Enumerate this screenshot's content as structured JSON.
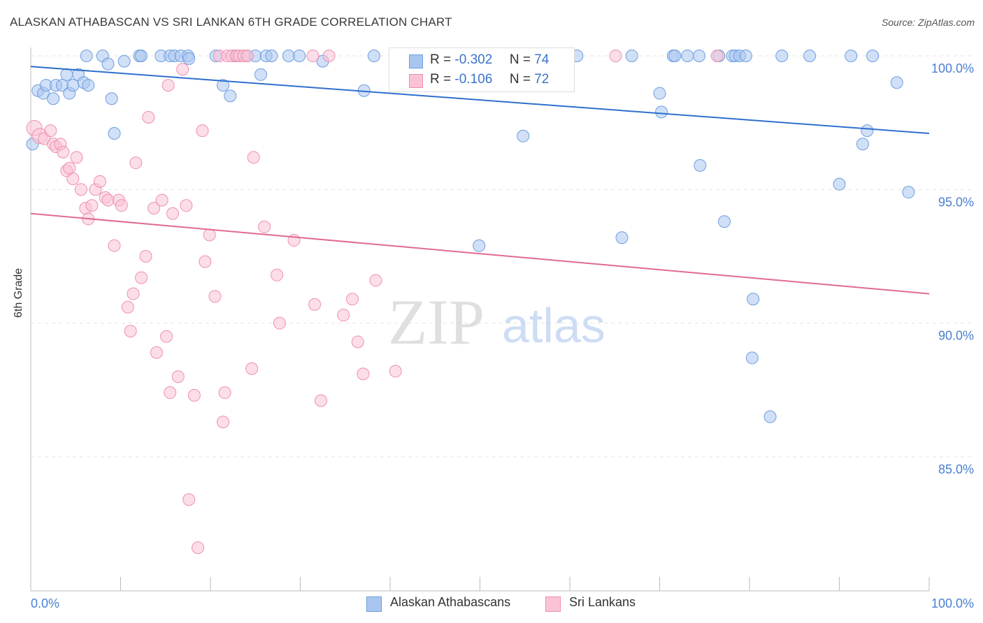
{
  "title": "ALASKAN ATHABASCAN VS SRI LANKAN 6TH GRADE CORRELATION CHART",
  "source": "Source: ZipAtlas.com",
  "watermark": {
    "zip": "ZIP",
    "atlas": "atlas"
  },
  "legend_top": {
    "r_label": "R =",
    "n_label": "N =",
    "rows": [
      {
        "r": "-0.302",
        "n": "74",
        "color": "#a9c6f0",
        "border": "#6f9de0"
      },
      {
        "r": "-0.106",
        "n": "72",
        "color": "#f9c3d5",
        "border": "#ef8fb0"
      }
    ]
  },
  "legend_bottom": [
    {
      "label": "Alaskan Athabascans",
      "color": "#a9c6f0",
      "border": "#6f9de0"
    },
    {
      "label": "Sri Lankans",
      "color": "#f9c3d5",
      "border": "#ef8fb0"
    }
  ],
  "chart_data": {
    "type": "scatter",
    "title": "ALASKAN ATHABASCAN VS SRI LANKAN 6TH GRADE CORRELATION CHART",
    "xlabel": "",
    "ylabel": "6th Grade",
    "xlim": [
      0,
      100
    ],
    "ylim": [
      80.5,
      100.5
    ],
    "x_tick_labels": [
      "0.0%",
      "100.0%"
    ],
    "y_ticks": [
      85,
      90,
      95,
      100
    ],
    "y_tick_labels": [
      "85.0%",
      "90.0%",
      "95.0%",
      "100.0%"
    ],
    "grid": true,
    "series": [
      {
        "name": "Alaskan Athabascans",
        "color": "#6f9de0",
        "fill": "#a9c6f0",
        "trend_color": "#2f6fcc",
        "trend": [
          [
            0,
            99.6
          ],
          [
            100,
            97.1
          ]
        ],
        "points": [
          [
            0.2,
            96.7
          ],
          [
            0.8,
            98.7
          ],
          [
            1.4,
            98.6
          ],
          [
            1.7,
            98.9
          ],
          [
            2.5,
            98.4
          ],
          [
            2.8,
            98.9
          ],
          [
            3.5,
            98.9
          ],
          [
            4.0,
            99.3
          ],
          [
            4.3,
            98.6
          ],
          [
            4.7,
            98.9
          ],
          [
            5.3,
            99.3
          ],
          [
            5.9,
            99.0
          ],
          [
            6.4,
            98.9
          ],
          [
            6.2,
            100
          ],
          [
            8.0,
            100
          ],
          [
            8.6,
            99.7
          ],
          [
            9.0,
            98.4
          ],
          [
            9.3,
            97.1
          ],
          [
            10.4,
            99.8
          ],
          [
            12.1,
            100
          ],
          [
            12.3,
            100
          ],
          [
            14.5,
            100
          ],
          [
            15.5,
            100
          ],
          [
            16.0,
            100
          ],
          [
            16.7,
            100
          ],
          [
            17.5,
            100
          ],
          [
            17.6,
            99.9
          ],
          [
            20.6,
            100
          ],
          [
            21.4,
            98.9
          ],
          [
            22.2,
            98.5
          ],
          [
            22.8,
            100
          ],
          [
            24.1,
            100
          ],
          [
            25.0,
            100
          ],
          [
            25.6,
            99.3
          ],
          [
            26.2,
            100
          ],
          [
            26.8,
            100
          ],
          [
            28.7,
            100
          ],
          [
            29.9,
            100
          ],
          [
            32.5,
            99.8
          ],
          [
            37.1,
            98.7
          ],
          [
            38.2,
            100
          ],
          [
            41.0,
            100
          ],
          [
            41.3,
            100
          ],
          [
            49.9,
            92.9
          ],
          [
            53.8,
            100
          ],
          [
            54.8,
            97.0
          ],
          [
            57.3,
            100
          ],
          [
            58.6,
            100
          ],
          [
            59.2,
            100
          ],
          [
            60.8,
            100
          ],
          [
            65.8,
            93.2
          ],
          [
            66.9,
            100
          ],
          [
            70.0,
            98.6
          ],
          [
            70.2,
            97.9
          ],
          [
            71.5,
            100
          ],
          [
            71.7,
            100
          ],
          [
            73.1,
            100
          ],
          [
            74.4,
            100
          ],
          [
            74.5,
            95.9
          ],
          [
            76.6,
            100
          ],
          [
            77.2,
            93.8
          ],
          [
            78.1,
            100
          ],
          [
            78.4,
            100
          ],
          [
            78.9,
            100
          ],
          [
            79.6,
            100
          ],
          [
            80.3,
            88.7
          ],
          [
            80.4,
            90.9
          ],
          [
            82.3,
            86.5
          ],
          [
            83.6,
            100
          ],
          [
            86.7,
            100
          ],
          [
            90.0,
            95.2
          ],
          [
            91.3,
            100
          ],
          [
            92.6,
            96.7
          ],
          [
            93.1,
            97.2
          ],
          [
            93.7,
            100
          ],
          [
            96.4,
            99.0
          ],
          [
            97.7,
            94.9
          ]
        ]
      },
      {
        "name": "Sri Lankans",
        "color": "#ef8fb0",
        "fill": "#f9c3d5",
        "trend_color": "#e06a93",
        "trend": [
          [
            0,
            94.1
          ],
          [
            100,
            91.1
          ]
        ],
        "points": [
          [
            0.4,
            97.3
          ],
          [
            1.0,
            97.0
          ],
          [
            1.5,
            96.9
          ],
          [
            2.2,
            97.2
          ],
          [
            2.5,
            96.7
          ],
          [
            2.8,
            96.6
          ],
          [
            3.3,
            96.7
          ],
          [
            3.6,
            96.4
          ],
          [
            4.0,
            95.7
          ],
          [
            4.3,
            95.8
          ],
          [
            4.7,
            95.4
          ],
          [
            5.1,
            96.2
          ],
          [
            5.6,
            95.0
          ],
          [
            6.1,
            94.3
          ],
          [
            6.4,
            93.9
          ],
          [
            6.8,
            94.4
          ],
          [
            7.2,
            95.0
          ],
          [
            7.7,
            95.3
          ],
          [
            8.3,
            94.7
          ],
          [
            8.6,
            94.6
          ],
          [
            9.3,
            92.9
          ],
          [
            9.8,
            94.6
          ],
          [
            10.1,
            94.4
          ],
          [
            10.8,
            90.6
          ],
          [
            11.1,
            89.7
          ],
          [
            11.4,
            91.1
          ],
          [
            11.7,
            96.0
          ],
          [
            12.3,
            91.7
          ],
          [
            12.8,
            92.5
          ],
          [
            13.1,
            97.7
          ],
          [
            13.7,
            94.3
          ],
          [
            14.0,
            88.9
          ],
          [
            14.6,
            94.6
          ],
          [
            15.1,
            89.5
          ],
          [
            15.3,
            98.9
          ],
          [
            15.5,
            87.4
          ],
          [
            15.8,
            94.1
          ],
          [
            16.4,
            88.0
          ],
          [
            16.9,
            99.5
          ],
          [
            17.3,
            94.4
          ],
          [
            17.6,
            83.4
          ],
          [
            18.2,
            87.3
          ],
          [
            18.6,
            81.6
          ],
          [
            19.1,
            97.2
          ],
          [
            19.4,
            92.3
          ],
          [
            19.9,
            93.3
          ],
          [
            20.5,
            91.0
          ],
          [
            21.0,
            100
          ],
          [
            21.4,
            86.3
          ],
          [
            21.6,
            87.4
          ],
          [
            21.9,
            100
          ],
          [
            22.4,
            100
          ],
          [
            22.9,
            100
          ],
          [
            23.2,
            100
          ],
          [
            23.7,
            100
          ],
          [
            24.1,
            100
          ],
          [
            24.6,
            88.3
          ],
          [
            24.8,
            96.2
          ],
          [
            26.0,
            93.6
          ],
          [
            27.4,
            91.8
          ],
          [
            27.7,
            90.0
          ],
          [
            29.3,
            93.1
          ],
          [
            31.4,
            100
          ],
          [
            31.6,
            90.7
          ],
          [
            32.3,
            87.1
          ],
          [
            33.2,
            100
          ],
          [
            34.8,
            90.3
          ],
          [
            35.8,
            90.9
          ],
          [
            36.4,
            89.3
          ],
          [
            37.0,
            88.1
          ],
          [
            38.4,
            91.6
          ],
          [
            40.6,
            88.2
          ],
          [
            41.1,
            100
          ],
          [
            56.3,
            100
          ],
          [
            65.1,
            100
          ],
          [
            76.4,
            100
          ]
        ]
      }
    ]
  }
}
